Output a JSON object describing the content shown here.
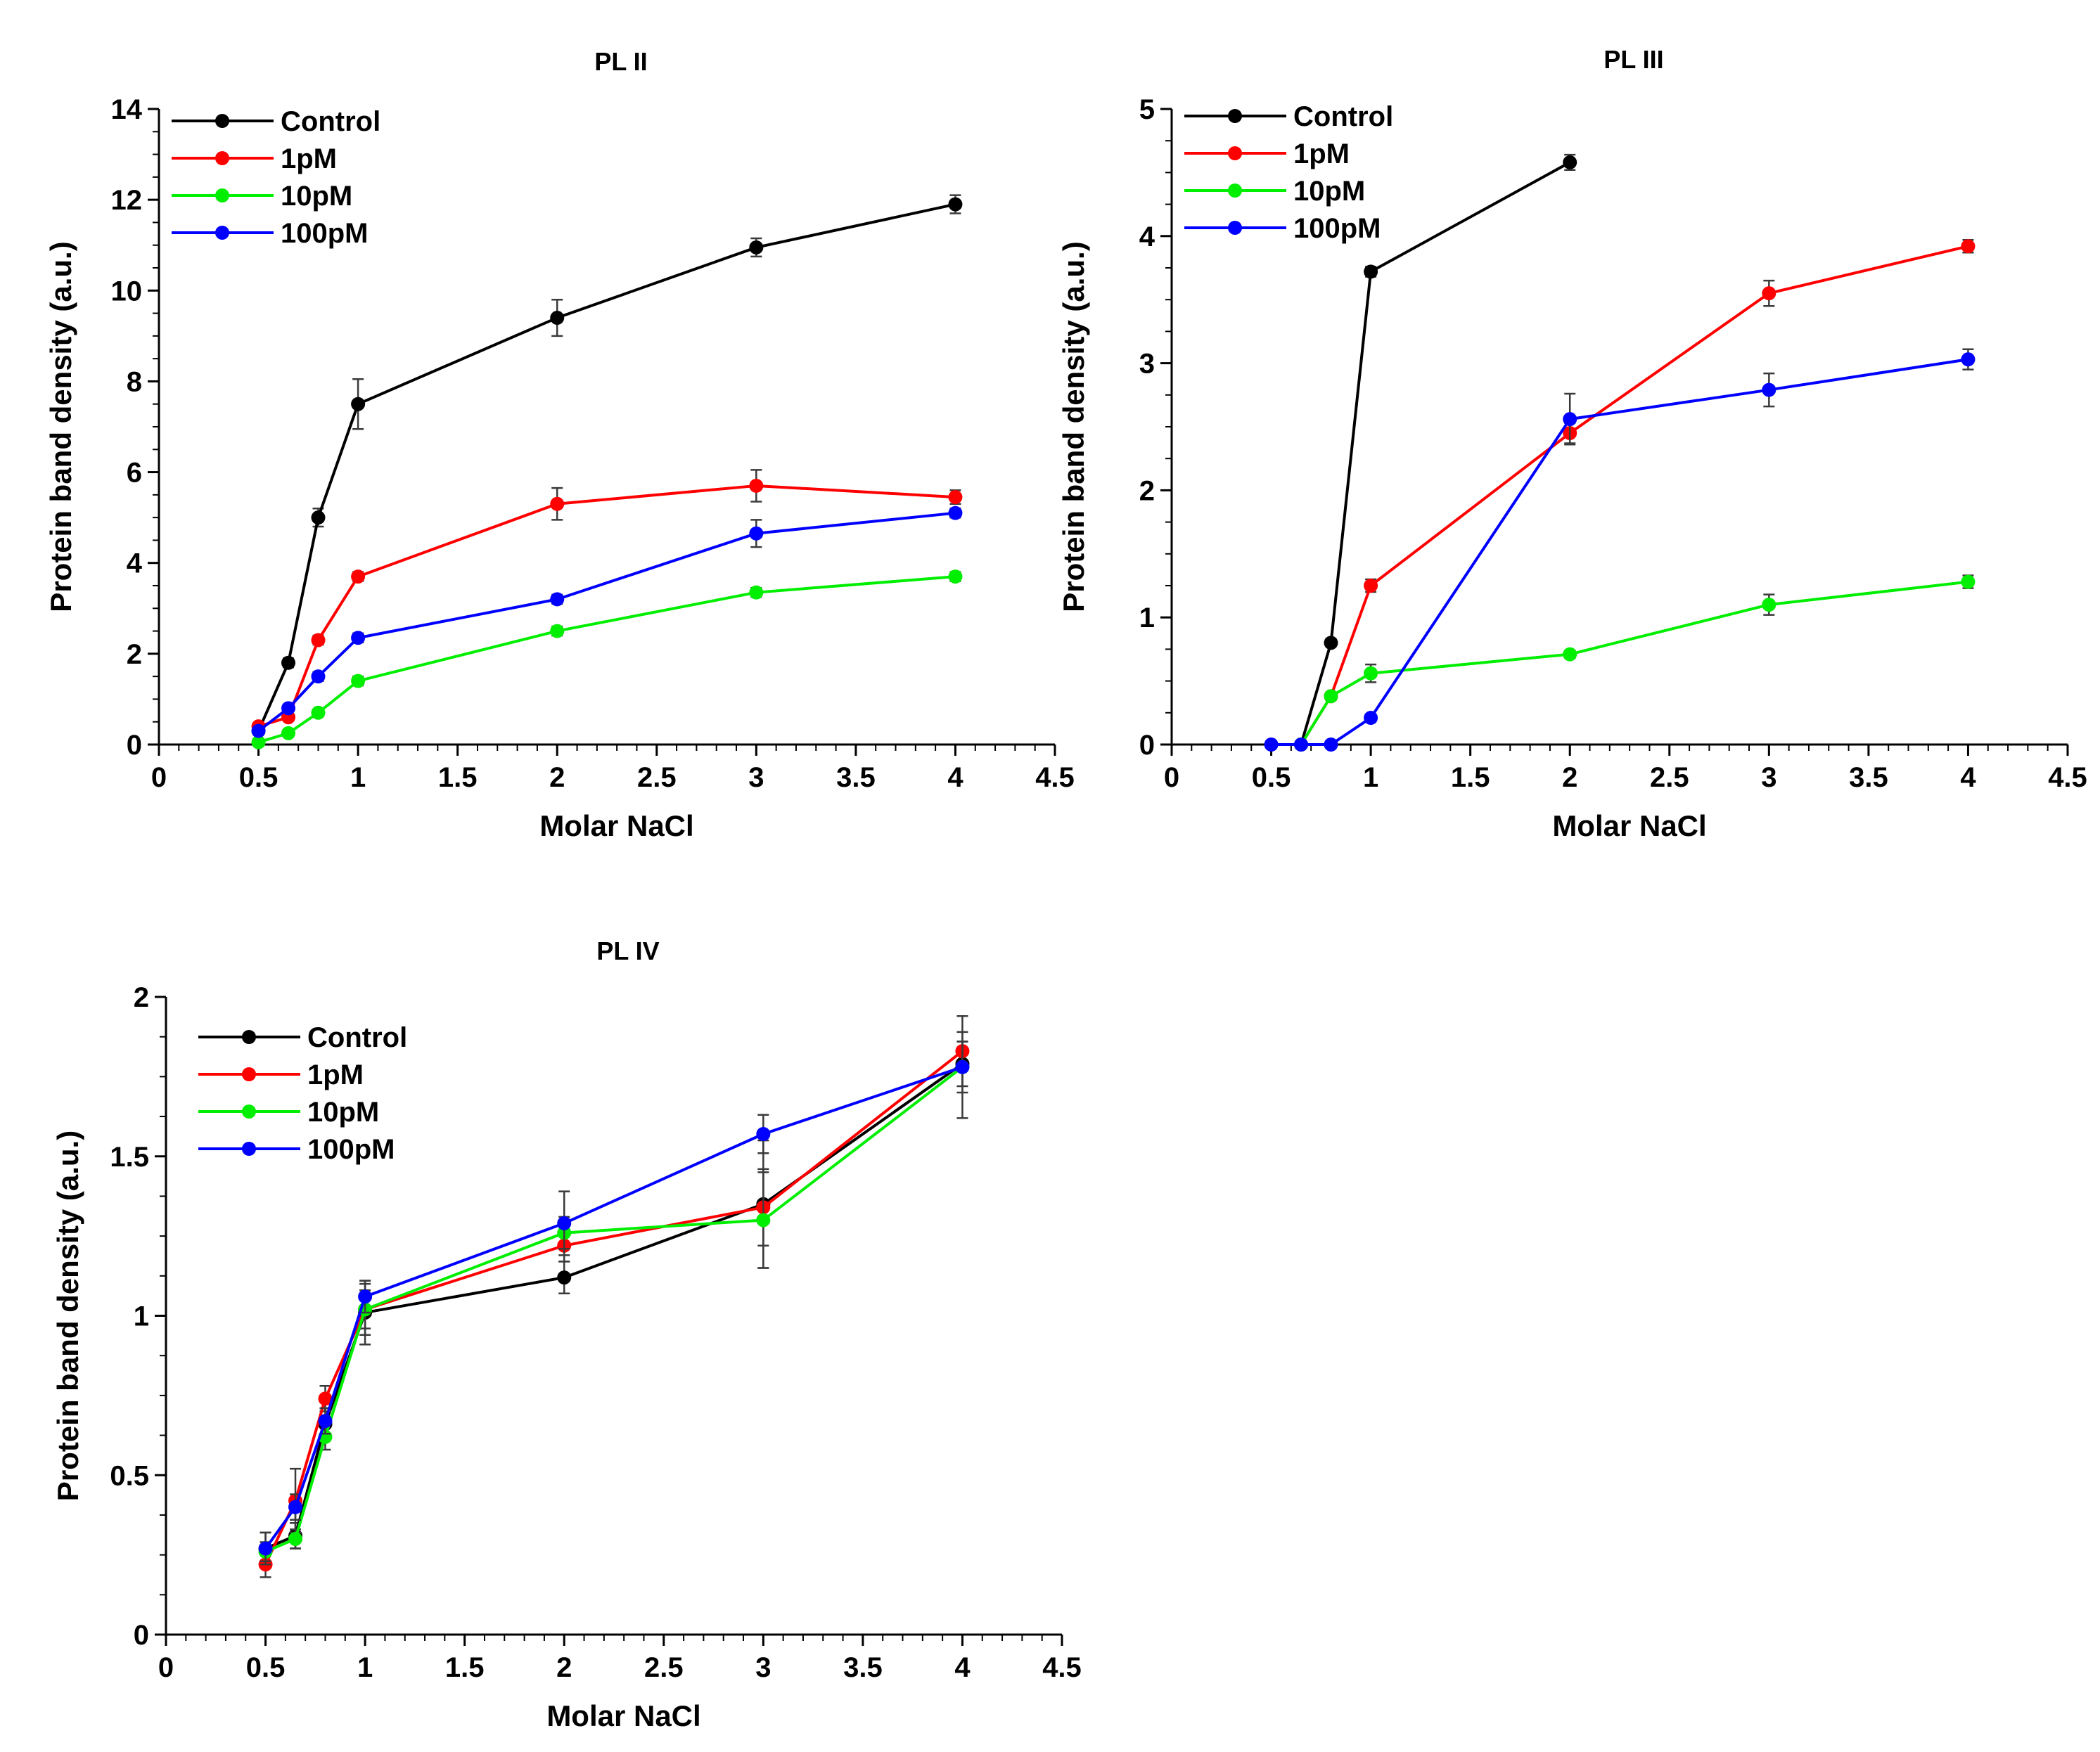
{
  "chart_data": [
    {
      "type": "line",
      "title": "PL II",
      "xlabel": "Molar NaCl",
      "ylabel": "Protein band density (a.u.)",
      "xlim": [
        0,
        4.5
      ],
      "ylim": [
        0,
        14
      ],
      "xticks": [
        0,
        0.5,
        1,
        1.5,
        2,
        2.5,
        3,
        3.5,
        4,
        4.5
      ],
      "xtick_labels": [
        "0",
        "0.5",
        "1",
        "1.5",
        "2",
        "2.5",
        "3",
        "3.5",
        "4",
        "4.5"
      ],
      "yticks": [
        0,
        2,
        4,
        6,
        8,
        10,
        12,
        14
      ],
      "ytick_labels": [
        "0",
        "2",
        "4",
        "6",
        "8",
        "10",
        "12",
        "14"
      ],
      "legend_position": "top-left",
      "series": [
        {
          "name": "Control",
          "color": "#000000",
          "x": [
            0.5,
            0.65,
            0.8,
            1,
            2,
            3,
            4
          ],
          "y": [
            0.3,
            1.8,
            5.0,
            7.5,
            9.4,
            10.95,
            11.9
          ],
          "err": [
            0.05,
            0.1,
            0.2,
            0.55,
            0.4,
            0.2,
            0.2
          ]
        },
        {
          "name": "1pM",
          "color": "#ff0000",
          "x": [
            0.5,
            0.65,
            0.8,
            1,
            2,
            3,
            4
          ],
          "y": [
            0.4,
            0.6,
            2.3,
            3.7,
            5.3,
            5.7,
            5.45
          ],
          "err": [
            0.05,
            0.05,
            0.1,
            0.1,
            0.35,
            0.35,
            0.15
          ]
        },
        {
          "name": "10pM",
          "color": "#00ee00",
          "x": [
            0.5,
            0.65,
            0.8,
            1,
            2,
            3,
            4
          ],
          "y": [
            0.05,
            0.25,
            0.7,
            1.4,
            2.5,
            3.35,
            3.7
          ],
          "err": [
            0.03,
            0.05,
            0.05,
            0.1,
            0.1,
            0.1,
            0.1
          ]
        },
        {
          "name": "100pM",
          "color": "#0000ff",
          "x": [
            0.5,
            0.65,
            0.8,
            1,
            2,
            3,
            4
          ],
          "y": [
            0.3,
            0.8,
            1.5,
            2.35,
            3.2,
            4.65,
            5.1
          ],
          "err": [
            0.05,
            0.05,
            0.1,
            0.1,
            0.1,
            0.3,
            0.1
          ]
        }
      ]
    },
    {
      "type": "line",
      "title": "PL III",
      "xlabel": "Molar NaCl",
      "ylabel": "Protein band density (a.u.)",
      "xlim": [
        0,
        4.5
      ],
      "ylim": [
        0,
        5
      ],
      "xticks": [
        0,
        0.5,
        1,
        1.5,
        2,
        2.5,
        3,
        3.5,
        4,
        4.5
      ],
      "xtick_labels": [
        "0",
        "0.5",
        "1",
        "1.5",
        "2",
        "2.5",
        "3",
        "3.5",
        "4",
        "4.5"
      ],
      "yticks": [
        0,
        1,
        2,
        3,
        4,
        5
      ],
      "ytick_labels": [
        "0",
        "1",
        "2",
        "3",
        "4",
        "5"
      ],
      "legend_position": "top-left",
      "series": [
        {
          "name": "Control",
          "color": "#000000",
          "x": [
            0.65,
            0.8,
            1,
            2
          ],
          "y": [
            0.0,
            0.8,
            3.72,
            4.58
          ],
          "err": [
            0.01,
            0.03,
            0.04,
            0.06
          ]
        },
        {
          "name": "1pM",
          "color": "#ff0000",
          "x": [
            0.65,
            0.8,
            1,
            2,
            3,
            4
          ],
          "y": [
            0.0,
            0.38,
            1.25,
            2.45,
            3.55,
            3.92
          ],
          "err": [
            0.01,
            0.03,
            0.05,
            0.08,
            0.1,
            0.05
          ]
        },
        {
          "name": "10pM",
          "color": "#00ee00",
          "x": [
            0.65,
            0.8,
            1,
            2,
            3,
            4
          ],
          "y": [
            0.0,
            0.38,
            0.56,
            0.71,
            1.1,
            1.28
          ],
          "err": [
            0.01,
            0.03,
            0.07,
            0.03,
            0.08,
            0.05
          ]
        },
        {
          "name": "100pM",
          "color": "#0000ff",
          "x": [
            0.5,
            0.65,
            0.8,
            1,
            2,
            3,
            4
          ],
          "y": [
            0.0,
            0.0,
            0.0,
            0.21,
            2.56,
            2.79,
            3.03
          ],
          "err": [
            0.01,
            0.01,
            0.01,
            0.03,
            0.2,
            0.13,
            0.08
          ]
        }
      ]
    },
    {
      "type": "line",
      "title": "PL IV",
      "xlabel": "Molar NaCl",
      "ylabel": "Protein band density (a.u.)",
      "xlim": [
        0,
        4.5
      ],
      "ylim": [
        0,
        2
      ],
      "xticks": [
        0,
        0.5,
        1,
        1.5,
        2,
        2.5,
        3,
        3.5,
        4,
        4.5
      ],
      "xtick_labels": [
        "0",
        "0.5",
        "1",
        "1.5",
        "2",
        "2.5",
        "3",
        "3.5",
        "4",
        "4.5"
      ],
      "yticks": [
        0,
        0.5,
        1,
        1.5,
        2
      ],
      "ytick_labels": [
        "0",
        "0.5",
        "1",
        "1.5",
        "2"
      ],
      "legend_position": "top-left",
      "series": [
        {
          "name": "Control",
          "color": "#000000",
          "x": [
            0.5,
            0.65,
            0.8,
            1,
            2,
            3,
            4
          ],
          "y": [
            0.27,
            0.31,
            0.66,
            1.01,
            1.12,
            1.35,
            1.79
          ],
          "err": [
            0.05,
            0.04,
            0.05,
            0.1,
            0.05,
            0.2,
            0.07
          ]
        },
        {
          "name": "1pM",
          "color": "#ff0000",
          "x": [
            0.5,
            0.65,
            0.8,
            1,
            2,
            3,
            4
          ],
          "y": [
            0.22,
            0.42,
            0.74,
            1.02,
            1.22,
            1.34,
            1.83
          ],
          "err": [
            0.04,
            0.1,
            0.04,
            0.08,
            0.05,
            0.12,
            0.06
          ]
        },
        {
          "name": "10pM",
          "color": "#00ee00",
          "x": [
            0.5,
            0.65,
            0.8,
            1,
            2,
            3,
            4
          ],
          "y": [
            0.26,
            0.3,
            0.62,
            1.02,
            1.26,
            1.3,
            1.78
          ],
          "err": [
            0.03,
            0.03,
            0.04,
            0.06,
            0.05,
            0.15,
            0.08
          ]
        },
        {
          "name": "100pM",
          "color": "#0000ff",
          "x": [
            0.5,
            0.65,
            0.8,
            1,
            2,
            3,
            4
          ],
          "y": [
            0.27,
            0.4,
            0.67,
            1.06,
            1.29,
            1.57,
            1.78
          ],
          "err": [
            0.05,
            0.04,
            0.04,
            0.05,
            0.1,
            0.06,
            0.16
          ]
        }
      ]
    }
  ]
}
